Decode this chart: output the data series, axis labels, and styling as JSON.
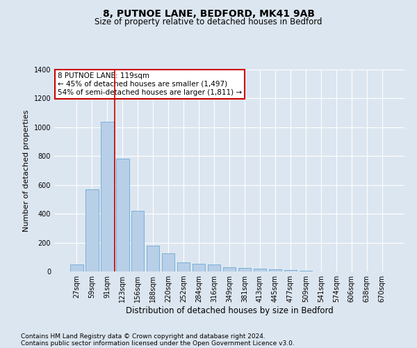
{
  "title": "8, PUTNOE LANE, BEDFORD, MK41 9AB",
  "subtitle": "Size of property relative to detached houses in Bedford",
  "xlabel": "Distribution of detached houses by size in Bedford",
  "ylabel": "Number of detached properties",
  "categories": [
    "27sqm",
    "59sqm",
    "91sqm",
    "123sqm",
    "156sqm",
    "188sqm",
    "220sqm",
    "252sqm",
    "284sqm",
    "316sqm",
    "349sqm",
    "381sqm",
    "413sqm",
    "445sqm",
    "477sqm",
    "509sqm",
    "541sqm",
    "574sqm",
    "606sqm",
    "638sqm",
    "670sqm"
  ],
  "values": [
    50,
    570,
    1040,
    780,
    420,
    180,
    125,
    65,
    55,
    50,
    30,
    25,
    20,
    15,
    8,
    3,
    1,
    0,
    0,
    0,
    0
  ],
  "bar_color": "#b8cfe8",
  "bar_edge_color": "#6aaad4",
  "vline_color": "#cc0000",
  "vline_x_index": 2.5,
  "ylim": [
    0,
    1400
  ],
  "yticks": [
    0,
    200,
    400,
    600,
    800,
    1000,
    1200,
    1400
  ],
  "annotation_title": "8 PUTNOE LANE: 119sqm",
  "annotation_line1": "← 45% of detached houses are smaller (1,497)",
  "annotation_line2": "54% of semi-detached houses are larger (1,811) →",
  "annotation_box_color": "#ffffff",
  "annotation_box_edge": "#cc0000",
  "bg_color": "#dce6f0",
  "plot_bg_color": "#dce6f0",
  "grid_color": "#ffffff",
  "footer1": "Contains HM Land Registry data © Crown copyright and database right 2024.",
  "footer2": "Contains public sector information licensed under the Open Government Licence v3.0.",
  "title_fontsize": 10,
  "subtitle_fontsize": 8.5,
  "xlabel_fontsize": 8.5,
  "ylabel_fontsize": 8,
  "tick_fontsize": 7,
  "annotation_fontsize": 7.5,
  "footer_fontsize": 6.5
}
